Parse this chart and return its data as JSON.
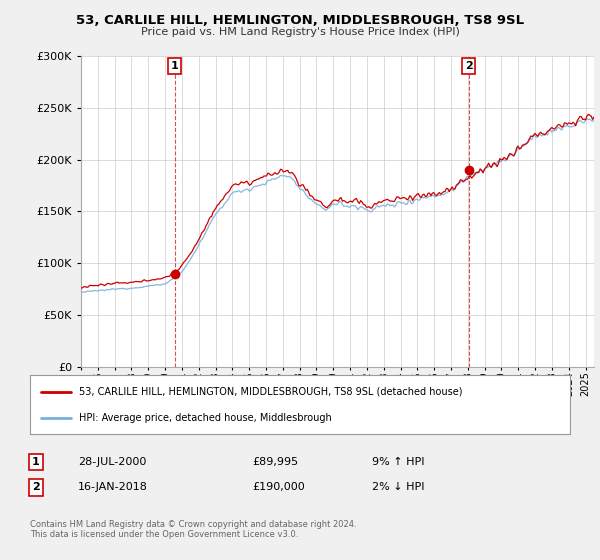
{
  "title": "53, CARLILE HILL, HEMLINGTON, MIDDLESBROUGH, TS8 9SL",
  "subtitle": "Price paid vs. HM Land Registry's House Price Index (HPI)",
  "ylim": [
    0,
    300000
  ],
  "xlim_start": 1995.0,
  "xlim_end": 2025.5,
  "line1_color": "#cc0000",
  "line2_color": "#7aafda",
  "marker1_x": 2000.57,
  "marker1_y": 89995,
  "marker1_label": "1",
  "marker1_date": "28-JUL-2000",
  "marker1_price": "£89,995",
  "marker1_hpi": "9% ↑ HPI",
  "marker2_x": 2018.04,
  "marker2_y": 190000,
  "marker2_label": "2",
  "marker2_date": "16-JAN-2018",
  "marker2_price": "£190,000",
  "marker2_hpi": "2% ↓ HPI",
  "legend_line1": "53, CARLILE HILL, HEMLINGTON, MIDDLESBROUGH, TS8 9SL (detached house)",
  "legend_line2": "HPI: Average price, detached house, Middlesbrough",
  "footer": "Contains HM Land Registry data © Crown copyright and database right 2024.\nThis data is licensed under the Open Government Licence v3.0.",
  "bg_color": "#f0f0f0",
  "plot_bg_color": "#ffffff",
  "grid_color": "#cccccc",
  "hpi_keypoints": [
    [
      1995.0,
      72000
    ],
    [
      1996.0,
      73500
    ],
    [
      1997.0,
      75000
    ],
    [
      1998.0,
      76000
    ],
    [
      1999.0,
      78000
    ],
    [
      2000.0,
      80000
    ],
    [
      2001.0,
      92000
    ],
    [
      2002.0,
      118000
    ],
    [
      2003.0,
      148000
    ],
    [
      2004.0,
      168000
    ],
    [
      2005.0,
      172000
    ],
    [
      2006.0,
      178000
    ],
    [
      2007.0,
      185000
    ],
    [
      2007.5,
      182000
    ],
    [
      2008.0,
      172000
    ],
    [
      2009.0,
      155000
    ],
    [
      2009.5,
      152000
    ],
    [
      2010.0,
      158000
    ],
    [
      2011.0,
      155000
    ],
    [
      2012.0,
      152000
    ],
    [
      2013.0,
      155000
    ],
    [
      2014.0,
      158000
    ],
    [
      2015.0,
      162000
    ],
    [
      2016.0,
      165000
    ],
    [
      2017.0,
      170000
    ],
    [
      2018.0,
      185000
    ],
    [
      2019.0,
      192000
    ],
    [
      2020.0,
      198000
    ],
    [
      2021.0,
      210000
    ],
    [
      2022.0,
      222000
    ],
    [
      2023.0,
      228000
    ],
    [
      2024.0,
      232000
    ],
    [
      2025.0,
      238000
    ]
  ],
  "prop_offset_keypoints": [
    [
      1995.0,
      5000
    ],
    [
      2000.0,
      6000
    ],
    [
      2004.0,
      8000
    ],
    [
      2007.0,
      5000
    ],
    [
      2009.0,
      3000
    ],
    [
      2014.0,
      5000
    ],
    [
      2018.0,
      0
    ],
    [
      2025.0,
      3000
    ]
  ]
}
